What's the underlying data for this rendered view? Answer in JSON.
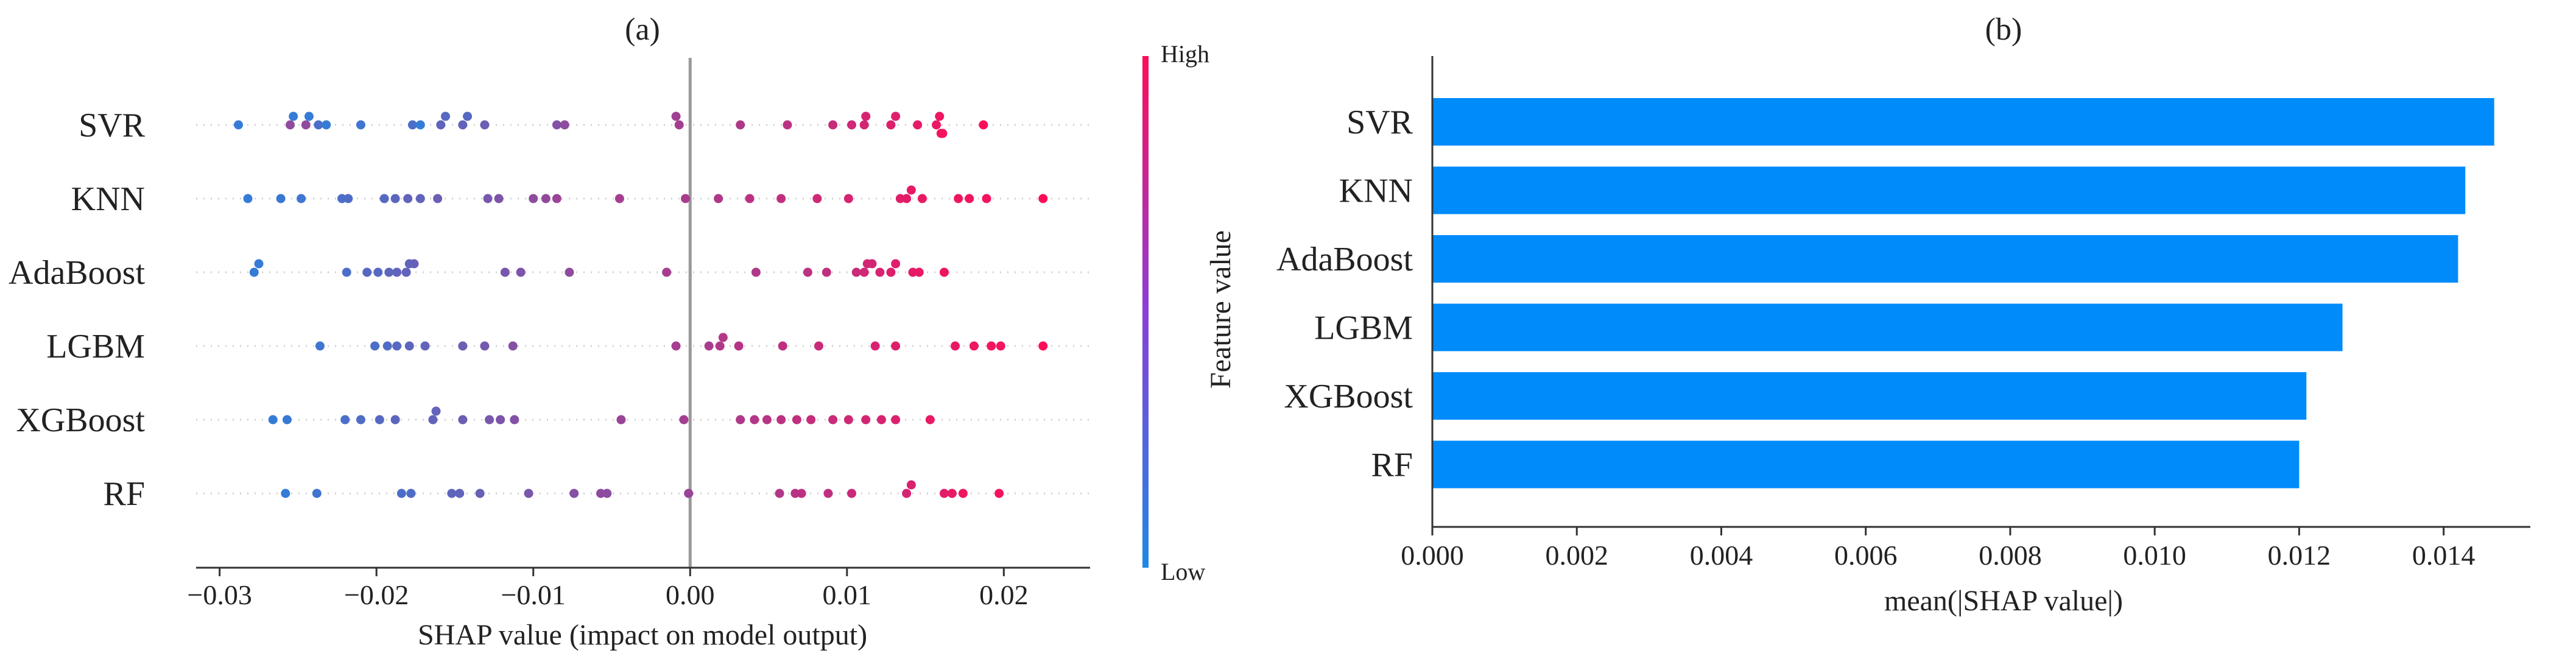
{
  "chart_data": [
    {
      "type": "scatter",
      "subtype": "shap-beeswarm",
      "title": "(a)",
      "xlabel": "SHAP value (impact on model output)",
      "ylabel": "",
      "xlim": [
        -0.0315,
        0.0255
      ],
      "xticks": [
        -0.03,
        -0.02,
        -0.01,
        0.0,
        0.01,
        0.02
      ],
      "xtick_labels": [
        "−0.03",
        "−0.02",
        "−0.01",
        "0.00",
        "0.01",
        "0.02"
      ],
      "categories": [
        "SVR",
        "KNN",
        "AdaBoost",
        "LGBM",
        "XGBoost",
        "RF"
      ],
      "colorbar": {
        "label": "Feature value",
        "high": "High",
        "low": "Low",
        "low_color": "#1E88E5",
        "high_color": "#FF0D57"
      },
      "series": [
        {
          "name": "SVR",
          "points": [
            [
              -0.0288,
              0.1
            ],
            [
              -0.0255,
              0.5
            ],
            [
              -0.0253,
              0.1
            ],
            [
              -0.0245,
              0.5
            ],
            [
              -0.0243,
              0.1
            ],
            [
              -0.0237,
              0.2
            ],
            [
              -0.0232,
              0.1
            ],
            [
              -0.021,
              0.15
            ],
            [
              -0.0177,
              0.2
            ],
            [
              -0.0172,
              0.1
            ],
            [
              -0.0159,
              0.3
            ],
            [
              -0.0156,
              0.25
            ],
            [
              -0.0145,
              0.3
            ],
            [
              -0.0142,
              0.25
            ],
            [
              -0.0131,
              0.35
            ],
            [
              -0.0085,
              0.45
            ],
            [
              -0.008,
              0.5
            ],
            [
              -0.0007,
              0.6
            ],
            [
              -0.0009,
              0.58
            ],
            [
              0.0032,
              0.65
            ],
            [
              0.0062,
              0.7
            ],
            [
              0.0091,
              0.75
            ],
            [
              0.0103,
              0.78
            ],
            [
              0.0111,
              0.8
            ],
            [
              0.0112,
              0.82
            ],
            [
              0.0128,
              0.85
            ],
            [
              0.0131,
              0.86
            ],
            [
              0.0145,
              0.88
            ],
            [
              0.0157,
              0.9
            ],
            [
              0.0159,
              0.92
            ],
            [
              0.016,
              0.94
            ],
            [
              0.0161,
              0.95
            ],
            [
              0.0187,
              0.98
            ]
          ]
        },
        {
          "name": "KNN",
          "points": [
            [
              -0.0282,
              0.1
            ],
            [
              -0.0261,
              0.12
            ],
            [
              -0.0248,
              0.15
            ],
            [
              -0.0222,
              0.2
            ],
            [
              -0.0218,
              0.22
            ],
            [
              -0.0195,
              0.25
            ],
            [
              -0.0188,
              0.28
            ],
            [
              -0.018,
              0.3
            ],
            [
              -0.0172,
              0.3
            ],
            [
              -0.0161,
              0.35
            ],
            [
              -0.0129,
              0.4
            ],
            [
              -0.0122,
              0.42
            ],
            [
              -0.01,
              0.5
            ],
            [
              -0.0092,
              0.52
            ],
            [
              -0.0085,
              0.55
            ],
            [
              -0.0045,
              0.6
            ],
            [
              -0.0003,
              0.62
            ],
            [
              0.0018,
              0.65
            ],
            [
              0.0038,
              0.7
            ],
            [
              0.0058,
              0.72
            ],
            [
              0.0081,
              0.78
            ],
            [
              0.0101,
              0.82
            ],
            [
              0.0134,
              0.86
            ],
            [
              0.0138,
              0.88
            ],
            [
              0.0141,
              0.9
            ],
            [
              0.0148,
              0.9
            ],
            [
              0.0171,
              0.93
            ],
            [
              0.0178,
              0.95
            ],
            [
              0.0189,
              0.96
            ],
            [
              0.0225,
              0.99
            ]
          ]
        },
        {
          "name": "AdaBoost",
          "points": [
            [
              -0.0278,
              0.1
            ],
            [
              -0.0275,
              0.1
            ],
            [
              -0.0219,
              0.2
            ],
            [
              -0.0206,
              0.25
            ],
            [
              -0.0199,
              0.25
            ],
            [
              -0.0192,
              0.28
            ],
            [
              -0.0187,
              0.3
            ],
            [
              -0.0181,
              0.3
            ],
            [
              -0.0179,
              0.3
            ],
            [
              -0.0176,
              0.32
            ],
            [
              -0.0118,
              0.4
            ],
            [
              -0.0108,
              0.42
            ],
            [
              -0.0077,
              0.5
            ],
            [
              -0.0015,
              0.6
            ],
            [
              0.0042,
              0.65
            ],
            [
              0.0075,
              0.7
            ],
            [
              0.0087,
              0.72
            ],
            [
              0.0106,
              0.76
            ],
            [
              0.0111,
              0.78
            ],
            [
              0.0113,
              0.8
            ],
            [
              0.0116,
              0.8
            ],
            [
              0.0121,
              0.82
            ],
            [
              0.0128,
              0.85
            ],
            [
              0.0131,
              0.86
            ],
            [
              0.0142,
              0.88
            ],
            [
              0.0146,
              0.9
            ],
            [
              0.0162,
              0.93
            ]
          ]
        },
        {
          "name": "LGBM",
          "points": [
            [
              -0.0236,
              0.15
            ],
            [
              -0.0201,
              0.2
            ],
            [
              -0.0193,
              0.22
            ],
            [
              -0.0187,
              0.25
            ],
            [
              -0.0179,
              0.28
            ],
            [
              -0.0169,
              0.3
            ],
            [
              -0.0145,
              0.35
            ],
            [
              -0.0131,
              0.38
            ],
            [
              -0.0113,
              0.45
            ],
            [
              -0.0009,
              0.6
            ],
            [
              0.0012,
              0.62
            ],
            [
              0.0019,
              0.65
            ],
            [
              0.0021,
              0.66
            ],
            [
              0.0031,
              0.68
            ],
            [
              0.0059,
              0.72
            ],
            [
              0.0082,
              0.76
            ],
            [
              0.0118,
              0.82
            ],
            [
              0.0131,
              0.85
            ],
            [
              0.0169,
              0.9
            ],
            [
              0.0181,
              0.92
            ],
            [
              0.0192,
              0.94
            ],
            [
              0.0198,
              0.95
            ],
            [
              0.0225,
              0.99
            ]
          ]
        },
        {
          "name": "XGBoost",
          "points": [
            [
              -0.0266,
              0.1
            ],
            [
              -0.0257,
              0.12
            ],
            [
              -0.022,
              0.2
            ],
            [
              -0.021,
              0.22
            ],
            [
              -0.0198,
              0.25
            ],
            [
              -0.0188,
              0.28
            ],
            [
              -0.0164,
              0.3
            ],
            [
              -0.0162,
              0.3
            ],
            [
              -0.0145,
              0.35
            ],
            [
              -0.0128,
              0.4
            ],
            [
              -0.0121,
              0.42
            ],
            [
              -0.0112,
              0.45
            ],
            [
              -0.0044,
              0.55
            ],
            [
              -0.0004,
              0.6
            ],
            [
              0.0032,
              0.65
            ],
            [
              0.0041,
              0.66
            ],
            [
              0.0049,
              0.68
            ],
            [
              0.0058,
              0.7
            ],
            [
              0.0068,
              0.72
            ],
            [
              0.0077,
              0.74
            ],
            [
              0.0091,
              0.76
            ],
            [
              0.0101,
              0.78
            ],
            [
              0.0112,
              0.8
            ],
            [
              0.0122,
              0.82
            ],
            [
              0.0131,
              0.84
            ],
            [
              0.0153,
              0.9
            ]
          ]
        },
        {
          "name": "RF",
          "points": [
            [
              -0.0258,
              0.1
            ],
            [
              -0.0238,
              0.15
            ],
            [
              -0.0184,
              0.2
            ],
            [
              -0.0178,
              0.22
            ],
            [
              -0.0152,
              0.28
            ],
            [
              -0.0147,
              0.3
            ],
            [
              -0.0134,
              0.33
            ],
            [
              -0.0103,
              0.4
            ],
            [
              -0.0074,
              0.45
            ],
            [
              -0.0053,
              0.48
            ],
            [
              -0.0057,
              0.5
            ],
            [
              -0.0001,
              0.55
            ],
            [
              0.0057,
              0.65
            ],
            [
              0.0067,
              0.68
            ],
            [
              0.0071,
              0.7
            ],
            [
              0.0088,
              0.72
            ],
            [
              0.0103,
              0.76
            ],
            [
              0.0138,
              0.82
            ],
            [
              0.0141,
              0.83
            ],
            [
              0.0162,
              0.88
            ],
            [
              0.0167,
              0.9
            ],
            [
              0.0174,
              0.92
            ],
            [
              0.0197,
              0.96
            ]
          ]
        }
      ]
    },
    {
      "type": "bar",
      "orientation": "horizontal",
      "title": "(b)",
      "xlabel": "mean(|SHAP value|)",
      "ylabel": "",
      "xlim": [
        0,
        0.0152
      ],
      "xticks": [
        0.0,
        0.002,
        0.004,
        0.006,
        0.008,
        0.01,
        0.012,
        0.014
      ],
      "xtick_labels": [
        "0.000",
        "0.002",
        "0.004",
        "0.006",
        "0.008",
        "0.010",
        "0.012",
        "0.014"
      ],
      "categories": [
        "SVR",
        "KNN",
        "AdaBoost",
        "LGBM",
        "XGBoost",
        "RF"
      ],
      "values": [
        0.0147,
        0.0143,
        0.0142,
        0.0126,
        0.0121,
        0.012
      ],
      "bar_color": "#008BFB"
    }
  ]
}
